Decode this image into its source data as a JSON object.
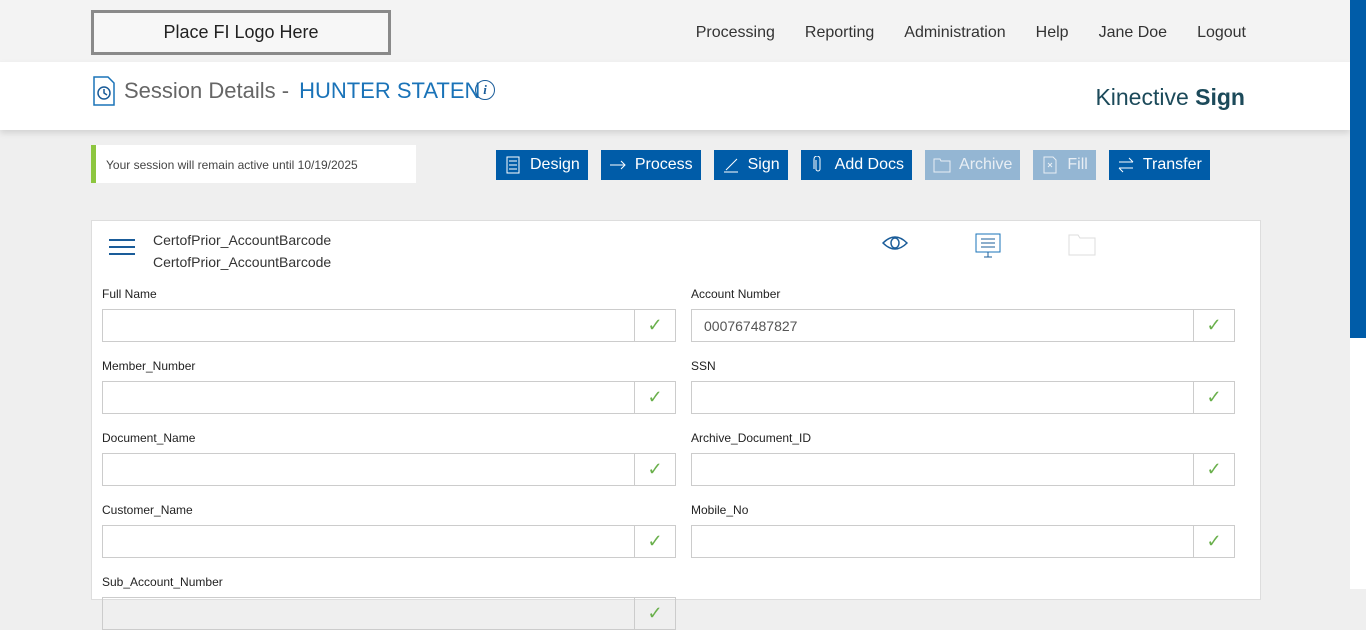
{
  "header": {
    "logo": "Place FI Logo Here",
    "nav": [
      "Processing",
      "Reporting",
      "Administration",
      "Help",
      "Jane Doe",
      "Logout"
    ]
  },
  "subheader": {
    "title": "Session Details -",
    "customer": "HUNTER STATEN",
    "brand_light": "Kinective",
    "brand_bold": "Sign"
  },
  "notice": "Your session will remain active until 10/19/2025",
  "toolbar": [
    {
      "label": "Design",
      "enabled": true
    },
    {
      "label": "Process",
      "enabled": true
    },
    {
      "label": "Sign",
      "enabled": true
    },
    {
      "label": "Add Docs",
      "enabled": true
    },
    {
      "label": "Archive",
      "enabled": false
    },
    {
      "label": "Fill",
      "enabled": false
    },
    {
      "label": "Transfer",
      "enabled": true
    }
  ],
  "document": {
    "name1": "CertofPrior_AccountBarcode",
    "name2": "CertofPrior_AccountBarcode"
  },
  "fields": [
    {
      "label": "Full Name",
      "value": ""
    },
    {
      "label": "Account Number",
      "value": "000767487827"
    },
    {
      "label": "Member_Number",
      "value": ""
    },
    {
      "label": "SSN",
      "value": ""
    },
    {
      "label": "Document_Name",
      "value": ""
    },
    {
      "label": "Archive_Document_ID",
      "value": ""
    },
    {
      "label": "Customer_Name",
      "value": ""
    },
    {
      "label": "Mobile_No",
      "value": ""
    },
    {
      "label": "Sub_Account_Number",
      "value": ""
    }
  ],
  "check": "✓"
}
